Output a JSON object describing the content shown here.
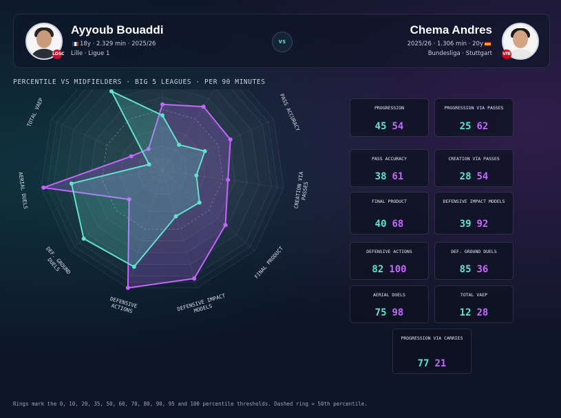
{
  "player_a": {
    "name": "Ayyoub Bouaddi",
    "meta_line1": "18y · 2.329 min · 2025/26",
    "meta_line2": "Lille · Ligue 1",
    "color": "#5fe3cc",
    "club_badge": "LOSC"
  },
  "player_b": {
    "name": "Chema Andres",
    "meta_line1": "2025/26 · 1.306 min · 20y",
    "meta_line2": "Bundesliga · Stuttgart",
    "color": "#c466ff",
    "club_badge": "VfB"
  },
  "vs_label": "vs",
  "subtitle": "PERCENTILE VS MIDFIELDERS · BIG 5 LEAGUES · PER 90 MINUTES",
  "footnote": "Rings mark the 0, 10, 20, 35, 50, 60, 70, 80, 90, 95 and 100 percentile thresholds. Dashed ring = 50th percentile.",
  "chart_data": {
    "type": "radar",
    "axes": [
      "PROGRESSION",
      "PROGRESSION VIA PASSES",
      "PASS ACCURACY",
      "CREATION VIA PASSES",
      "FINAL PRODUCT",
      "DEFENSIVE IMPACT MODELS",
      "DEFENSIVE ACTIONS",
      "DEF. GROUND DUELS",
      "AERIAL DUELS",
      "TOTAL VAEP",
      "PROGRESSION VIA CARRIES"
    ],
    "rings": [
      0,
      10,
      20,
      35,
      50,
      60,
      70,
      80,
      90,
      95,
      100
    ],
    "dashed_ring": 50,
    "series": [
      {
        "name": "Ayyoub Bouaddi",
        "color": "#5fe3cc",
        "values": [
          45,
          25,
          38,
          28,
          40,
          39,
          82,
          85,
          75,
          12,
          77
        ]
      },
      {
        "name": "Chema Andres",
        "color": "#c466ff",
        "values": [
          54,
          62,
          61,
          54,
          68,
          92,
          100,
          36,
          98,
          28,
          21
        ]
      }
    ]
  },
  "tiles": [
    {
      "label": "PROGRESSION",
      "a": "45",
      "b": "54"
    },
    {
      "label": "PROGRESSION VIA PASSES",
      "a": "25",
      "b": "62"
    },
    {
      "label": "PASS ACCURACY",
      "a": "38",
      "b": "61"
    },
    {
      "label": "CREATION VIA PASSES",
      "a": "28",
      "b": "54"
    },
    {
      "label": "FINAL PRODUCT",
      "a": "40",
      "b": "68"
    },
    {
      "label": "DEFENSIVE IMPACT MODELS",
      "a": "39",
      "b": "92"
    },
    {
      "label": "DEFENSIVE ACTIONS",
      "a": "82",
      "b": "100"
    },
    {
      "label": "DEF. GROUND DUELS",
      "a": "85",
      "b": "36"
    },
    {
      "label": "AERIAL DUELS",
      "a": "75",
      "b": "98"
    },
    {
      "label": "TOTAL VAEP",
      "a": "12",
      "b": "28"
    },
    {
      "label": "PROGRESSION VIA CARRIES",
      "a": "77",
      "b": "21"
    }
  ]
}
